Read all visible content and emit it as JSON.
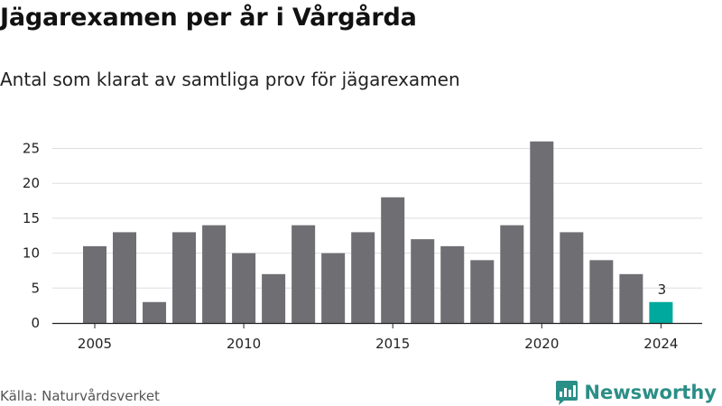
{
  "header": {
    "title": "Jägarexamen per år i Vårgårda",
    "subtitle": "Antal som klarat av samtliga prov för jägarexamen"
  },
  "footer": {
    "source": "Källa: Naturvårdsverket",
    "brand": "Newsworthy"
  },
  "colors": {
    "bar": "#6f6e73",
    "highlight": "#00a99d",
    "grid": "#dedede",
    "axis": "#222222",
    "brand": "#2a8f86"
  },
  "chart_data": {
    "type": "bar",
    "title": "Jägarexamen per år i Vårgårda",
    "subtitle": "Antal som klarat av samtliga prov för jägarexamen",
    "xlabel": "",
    "ylabel": "",
    "categories": [
      2005,
      2006,
      2007,
      2008,
      2009,
      2010,
      2011,
      2012,
      2013,
      2014,
      2015,
      2016,
      2017,
      2018,
      2019,
      2020,
      2021,
      2022,
      2023,
      2024
    ],
    "values": [
      11,
      13,
      3,
      13,
      14,
      10,
      7,
      14,
      10,
      13,
      18,
      12,
      11,
      9,
      14,
      26,
      13,
      9,
      7,
      3
    ],
    "highlight_index": 19,
    "ylim": [
      0,
      26
    ],
    "yticks": [
      0,
      5,
      10,
      15,
      20,
      25
    ],
    "xticks": [
      2005,
      2010,
      2015,
      2020,
      2024
    ],
    "annotations": [
      {
        "category": 2024,
        "text": "3"
      }
    ],
    "grid": true,
    "legend": "none"
  }
}
